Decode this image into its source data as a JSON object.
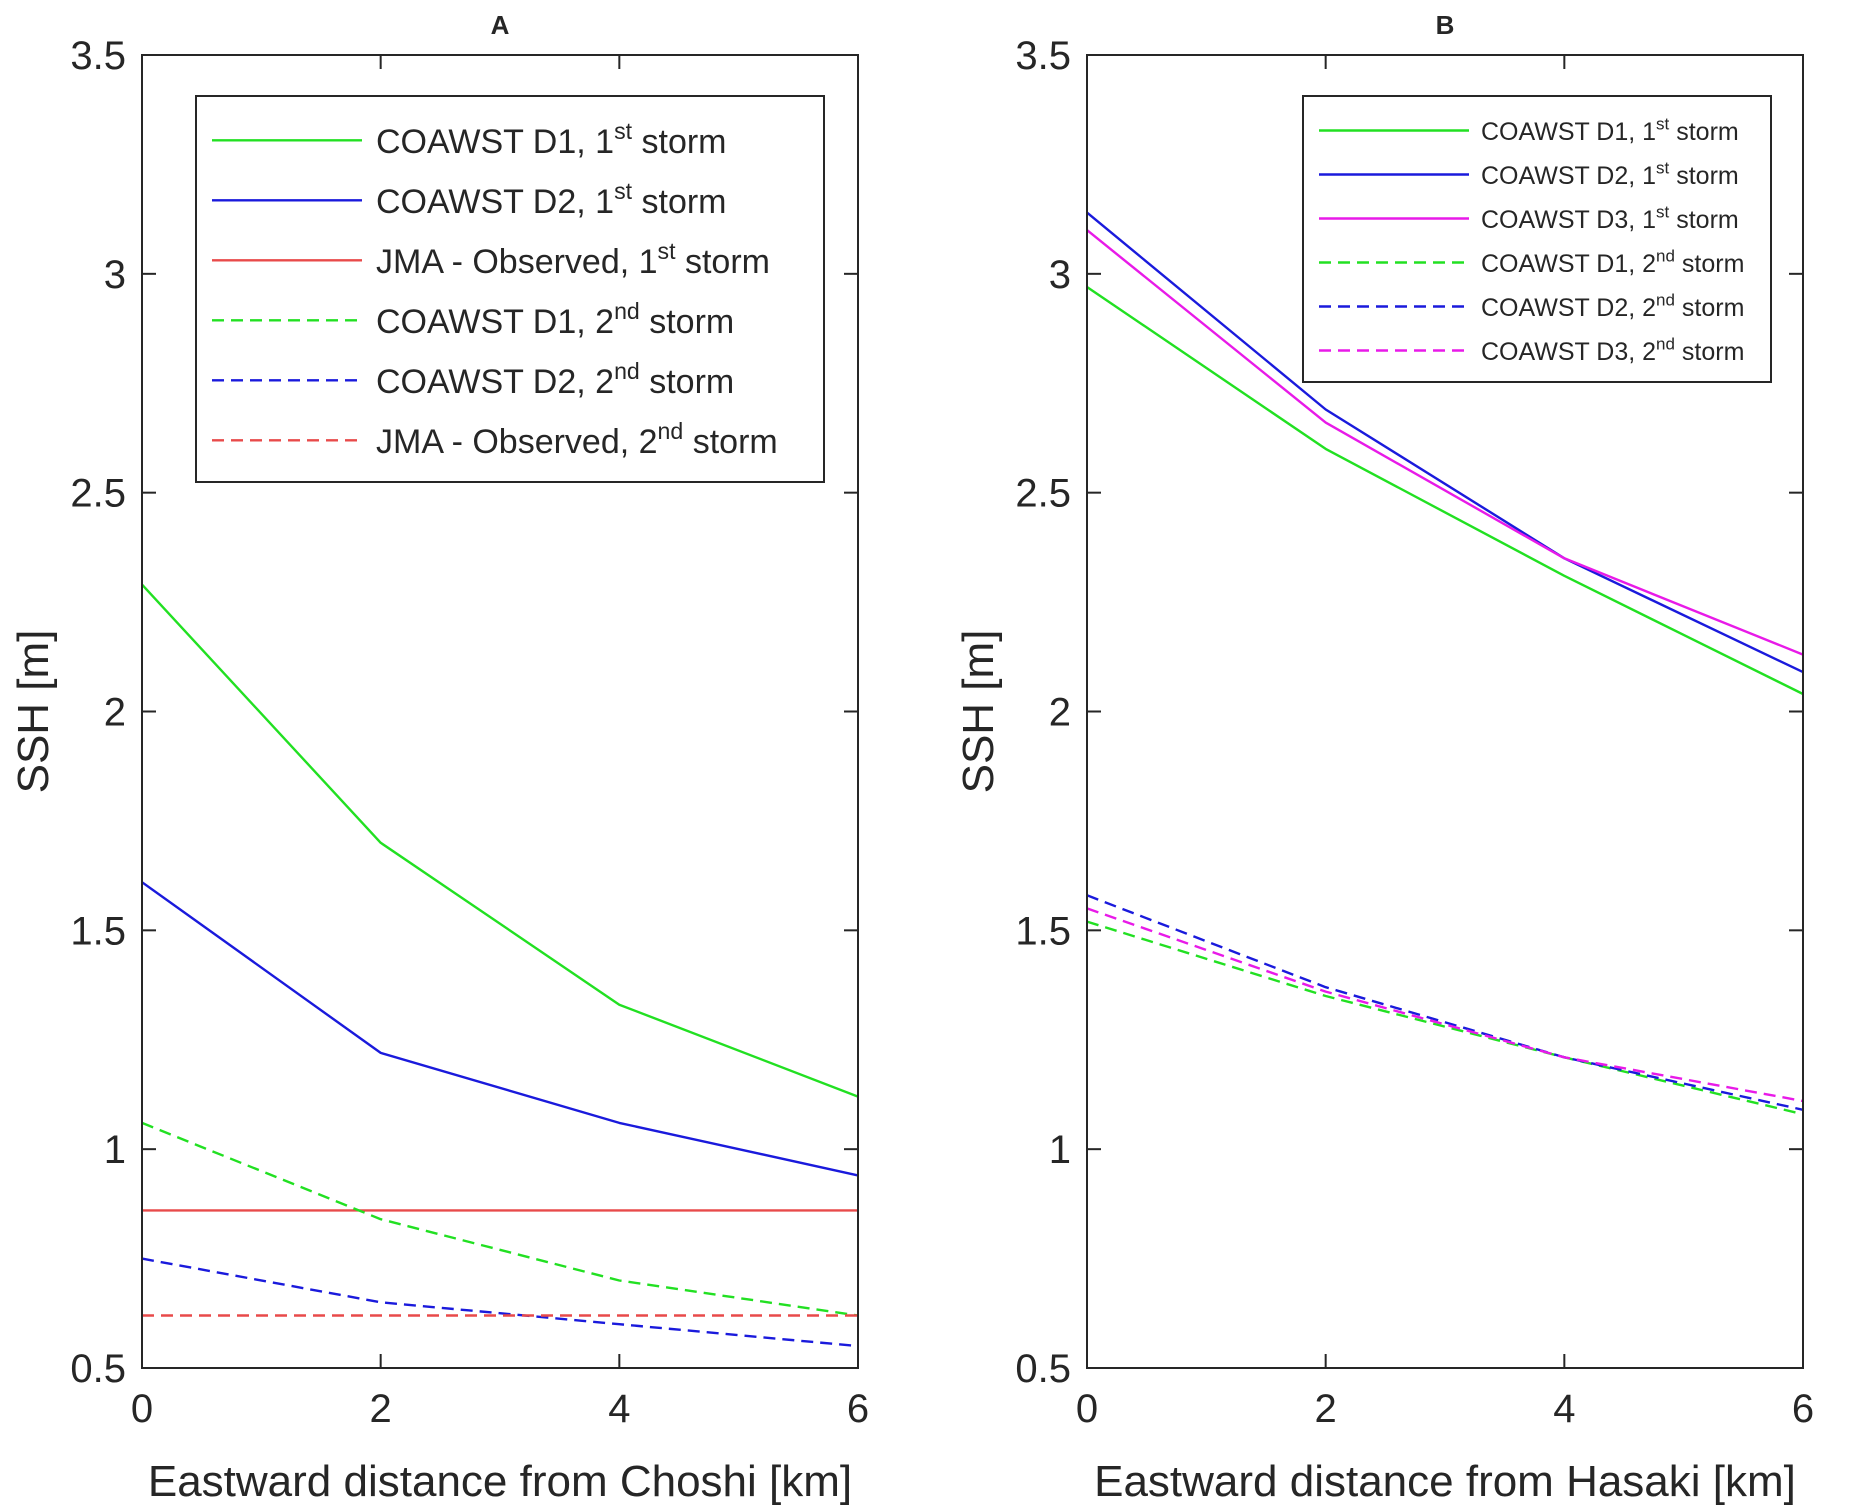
{
  "chart_data": [
    {
      "type": "line",
      "panel_label": "A",
      "xlabel": "Eastward distance from Choshi [km]",
      "ylabel": "SSH [m]",
      "xlim": [
        0,
        6
      ],
      "ylim": [
        0.5,
        3.5
      ],
      "xticks": [
        0,
        2,
        4,
        6
      ],
      "xtick_labels": [
        "0",
        "2",
        "4",
        "6"
      ],
      "yticks": [
        0.5,
        1,
        1.5,
        2,
        2.5,
        3,
        3.5
      ],
      "ytick_labels": [
        "0.5",
        "1",
        "1.5",
        "2",
        "2.5",
        "3",
        "3.5"
      ],
      "grid": false,
      "legend_position": "top-right",
      "series": [
        {
          "name": "COAWST D1, 1st storm",
          "label_pre": "COAWST D1, 1",
          "label_sup": "st",
          "label_post": " storm",
          "color": "#22e022",
          "dash": "solid",
          "x": [
            0,
            2,
            4,
            6
          ],
          "values": [
            2.29,
            1.7,
            1.33,
            1.12
          ]
        },
        {
          "name": "COAWST D2, 1st storm",
          "label_pre": "COAWST D2, 1",
          "label_sup": "st",
          "label_post": " storm",
          "color": "#1a1adc",
          "dash": "solid",
          "x": [
            0,
            2,
            4,
            6
          ],
          "values": [
            1.61,
            1.22,
            1.06,
            0.94
          ]
        },
        {
          "name": "JMA - Observed, 1st storm",
          "label_pre": "JMA - Observed, 1",
          "label_sup": "st",
          "label_post": " storm",
          "color": "#e84a4a",
          "dash": "solid",
          "x": [
            0,
            2,
            4,
            6
          ],
          "values": [
            0.86,
            0.86,
            0.86,
            0.86
          ]
        },
        {
          "name": "COAWST D1, 2nd storm",
          "label_pre": "COAWST D1, 2",
          "label_sup": "nd",
          "label_post": " storm",
          "color": "#22e022",
          "dash": "dashed",
          "x": [
            0,
            2,
            4,
            6
          ],
          "values": [
            1.06,
            0.84,
            0.7,
            0.62
          ]
        },
        {
          "name": "COAWST D2, 2nd storm",
          "label_pre": "COAWST D2, 2",
          "label_sup": "nd",
          "label_post": " storm",
          "color": "#1a1adc",
          "dash": "dashed",
          "x": [
            0,
            2,
            4,
            6
          ],
          "values": [
            0.75,
            0.65,
            0.6,
            0.55
          ]
        },
        {
          "name": "JMA - Observed, 2nd storm",
          "label_pre": "JMA - Observed, 2",
          "label_sup": "nd",
          "label_post": " storm",
          "color": "#e84a4a",
          "dash": "dashed",
          "x": [
            0,
            2,
            4,
            6
          ],
          "values": [
            0.62,
            0.62,
            0.62,
            0.62
          ]
        }
      ]
    },
    {
      "type": "line",
      "panel_label": "B",
      "xlabel": "Eastward distance from Hasaki [km]",
      "ylabel": "SSH [m]",
      "xlim": [
        0,
        6
      ],
      "ylim": [
        0.5,
        3.5
      ],
      "xticks": [
        0,
        2,
        4,
        6
      ],
      "xtick_labels": [
        "0",
        "2",
        "4",
        "6"
      ],
      "yticks": [
        0.5,
        1,
        1.5,
        2,
        2.5,
        3,
        3.5
      ],
      "ytick_labels": [
        "0.5",
        "1",
        "1.5",
        "2",
        "2.5",
        "3",
        "3.5"
      ],
      "grid": false,
      "legend_position": "top-right",
      "series": [
        {
          "name": "COAWST D1, 1st storm",
          "label_pre": "COAWST D1, 1",
          "label_sup": "st",
          "label_post": " storm",
          "color": "#22e022",
          "dash": "solid",
          "x": [
            0,
            2,
            4,
            6
          ],
          "values": [
            2.97,
            2.6,
            2.31,
            2.04
          ]
        },
        {
          "name": "COAWST D2, 1st storm",
          "label_pre": "COAWST D2, 1",
          "label_sup": "st",
          "label_post": " storm",
          "color": "#1a1adc",
          "dash": "solid",
          "x": [
            0,
            2,
            4,
            6
          ],
          "values": [
            3.14,
            2.69,
            2.35,
            2.09
          ]
        },
        {
          "name": "COAWST D3, 1st storm",
          "label_pre": "COAWST D3, 1",
          "label_sup": "st",
          "label_post": " storm",
          "color": "#e81ae8",
          "dash": "solid",
          "x": [
            0,
            2,
            4,
            6
          ],
          "values": [
            3.1,
            2.66,
            2.35,
            2.13
          ]
        },
        {
          "name": "COAWST D1, 2nd storm",
          "label_pre": "COAWST D1, 2",
          "label_sup": "nd",
          "label_post": " storm",
          "color": "#22e022",
          "dash": "dashed",
          "x": [
            0,
            2,
            4,
            6
          ],
          "values": [
            1.52,
            1.35,
            1.21,
            1.08
          ]
        },
        {
          "name": "COAWST D2, 2nd storm",
          "label_pre": "COAWST D2, 2",
          "label_sup": "nd",
          "label_post": " storm",
          "color": "#1a1adc",
          "dash": "dashed",
          "x": [
            0,
            2,
            4,
            6
          ],
          "values": [
            1.58,
            1.37,
            1.21,
            1.09
          ]
        },
        {
          "name": "COAWST D3, 2nd storm",
          "label_pre": "COAWST D3, 2",
          "label_sup": "nd",
          "label_post": " storm",
          "color": "#e81ae8",
          "dash": "dashed",
          "x": [
            0,
            2,
            4,
            6
          ],
          "values": [
            1.55,
            1.36,
            1.21,
            1.11
          ]
        }
      ]
    }
  ]
}
